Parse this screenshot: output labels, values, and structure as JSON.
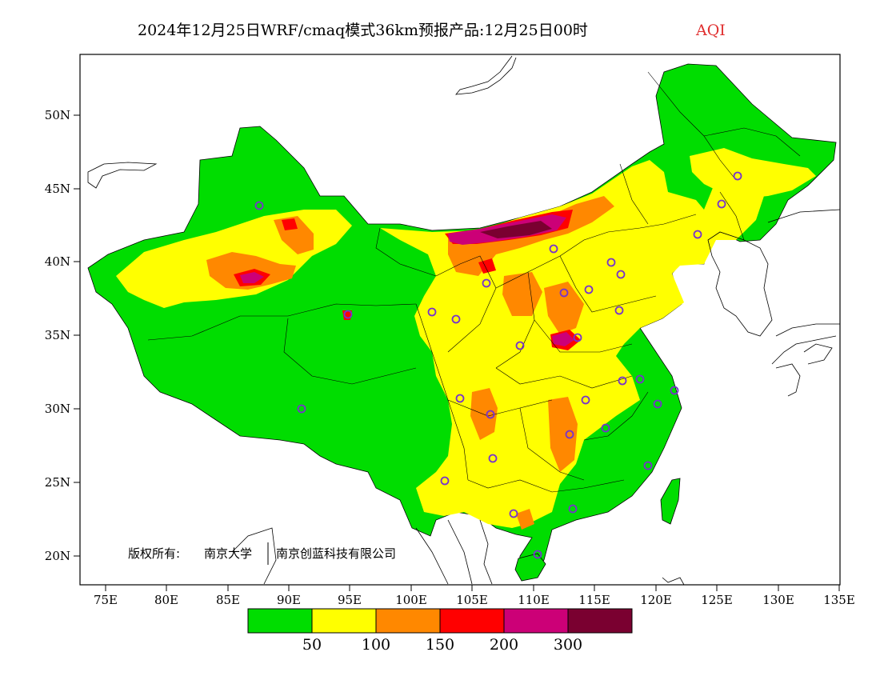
{
  "title": {
    "main": "2024年12月25日WRF/cmaq模式36km预报产品:12月25日00时",
    "variable": "AQI"
  },
  "axes": {
    "lat_labels": [
      "50N",
      "45N",
      "40N",
      "35N",
      "30N",
      "25N",
      "20N"
    ],
    "lon_labels": [
      "75E",
      "80E",
      "85E",
      "90E",
      "95E",
      "100E",
      "105E",
      "110E",
      "115E",
      "120E",
      "125E",
      "130E",
      "135E"
    ]
  },
  "copyright": {
    "prefix": "版权所有:",
    "org1": "南京大学",
    "org2": "南京创蓝科技有限公司"
  },
  "legend": {
    "colors": [
      "#00dd00",
      "#ffff00",
      "#ff8800",
      "#ff0000",
      "#cc0077",
      "#7a0030"
    ],
    "labels": [
      "50",
      "100",
      "150",
      "200",
      "300"
    ]
  },
  "colors": {
    "green": "#00dd00",
    "yellow": "#ffff00",
    "orange": "#ff8800",
    "red": "#ff0000",
    "magenta": "#cc0077",
    "maroon": "#7a0030",
    "city_marker": "#7733cc"
  }
}
